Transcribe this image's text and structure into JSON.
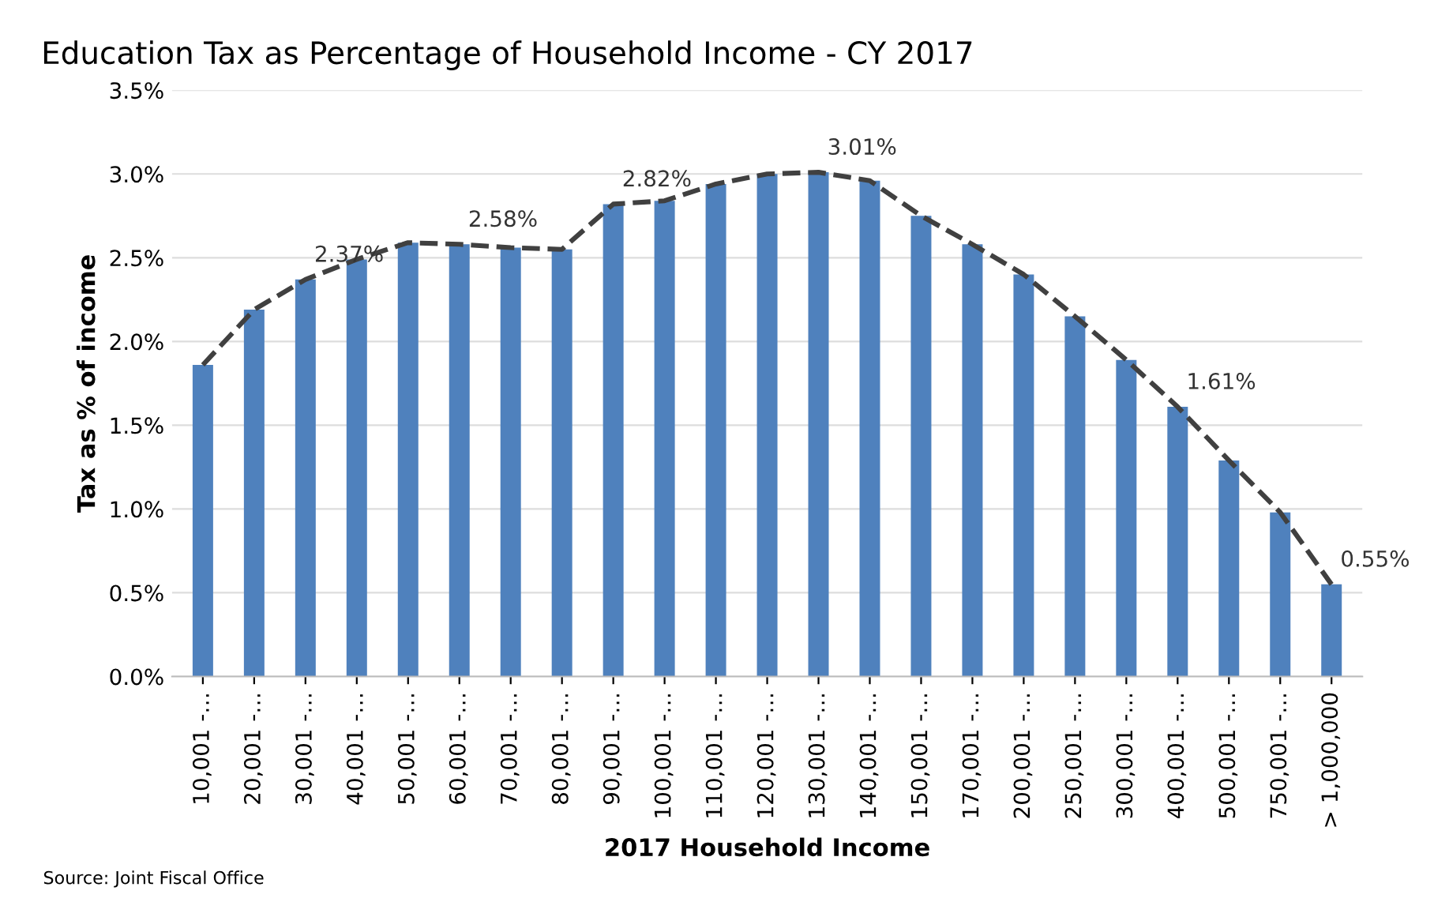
{
  "chart_data": {
    "type": "bar",
    "title": "Education Tax as Percentage of Household Income - CY 2017",
    "xlabel": "2017 Household Income",
    "ylabel": "Tax as % of income",
    "categories": [
      "10,001 -…",
      "20,001 -…",
      "30,001 -…",
      "40,001 -…",
      "50,001 -…",
      "60,001 -…",
      "70,001 -…",
      "80,001 -…",
      "90,001 -…",
      "100,001 -…",
      "110,001 -…",
      "120,001 -…",
      "130,001 -…",
      "140,001 -…",
      "150,001 -…",
      "170,001 -…",
      "200,001 -…",
      "250,001 -…",
      "300,001 -…",
      "400,001 -…",
      "500,001 -…",
      "750,001 -…",
      "> 1,000,000"
    ],
    "series": [
      {
        "color": "#4f81bd",
        "values": [
          1.86,
          2.19,
          2.37,
          2.49,
          2.59,
          2.58,
          2.56,
          2.55,
          2.82,
          2.84,
          2.94,
          3.0,
          3.01,
          2.96,
          2.75,
          2.58,
          2.4,
          2.15,
          1.89,
          1.61,
          1.29,
          0.98,
          0.55
        ]
      },
      {
        "type": "line",
        "color": "#404040",
        "line_style": "dashed",
        "marker": "none",
        "values": [
          1.86,
          2.19,
          2.37,
          2.49,
          2.59,
          2.58,
          2.56,
          2.55,
          2.82,
          2.84,
          2.94,
          3.0,
          3.01,
          2.96,
          2.75,
          2.58,
          2.4,
          2.15,
          1.89,
          1.61,
          1.29,
          0.98,
          0.55
        ],
        "value_labels": [
          null,
          null,
          "2.37%",
          null,
          null,
          "2.58%",
          null,
          null,
          "2.82%",
          null,
          null,
          null,
          "3.01%",
          null,
          null,
          null,
          null,
          null,
          null,
          "1.61%",
          null,
          null,
          "0.55%"
        ]
      }
    ],
    "ylim": [
      0,
      3.5
    ],
    "yticks": [
      {
        "value": 0,
        "label": "0.0%"
      },
      {
        "value": 0.5,
        "label": "0.5%"
      },
      {
        "value": 1,
        "label": "1.0%"
      },
      {
        "value": 1.5,
        "label": "1.5%"
      },
      {
        "value": 2,
        "label": "2.0%"
      },
      {
        "value": 2.5,
        "label": "2.5%"
      },
      {
        "value": 3,
        "label": "3.0%"
      },
      {
        "value": 3.5,
        "label": "3.5%"
      }
    ],
    "grid": "y",
    "legend": false,
    "annotations": [
      "Source: Joint Fiscal Office"
    ]
  }
}
